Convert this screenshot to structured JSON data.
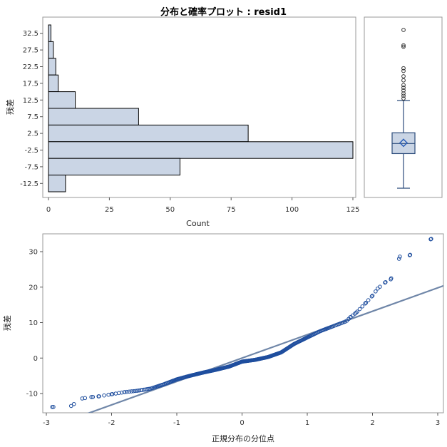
{
  "title": "分布と確率プロット : resid1",
  "colors": {
    "bar_fill": "#CAD5E5",
    "bar_stroke": "#000000",
    "box_stroke": "#2A4A7A",
    "marker": "#1F4E9E",
    "ref_line": "#6F86A8",
    "frame": "#999999"
  },
  "chart_data": [
    {
      "type": "bar",
      "orientation": "horizontal",
      "title": "",
      "xlabel": "Count",
      "ylabel": "残差",
      "categories": [
        "32.5",
        "27.5",
        "22.5",
        "17.5",
        "12.5",
        "7.5",
        "2.5",
        "-2.5",
        "-7.5",
        "-12.5"
      ],
      "bin_centers": [
        32.5,
        27.5,
        22.5,
        17.5,
        12.5,
        7.5,
        2.5,
        -2.5,
        -7.5,
        -12.5
      ],
      "values": [
        1,
        2,
        3,
        4,
        11,
        37,
        82,
        125,
        54,
        7
      ],
      "xlim": [
        0,
        125
      ],
      "xticks": [
        0,
        25,
        50,
        75,
        100,
        125
      ],
      "yticks": [
        "32.5",
        "27.5",
        "22.5",
        "17.5",
        "12.5",
        "7.5",
        "2.5",
        "-2.5",
        "-7.5",
        "-12.5"
      ]
    },
    {
      "type": "box",
      "ylim": [
        -15,
        35
      ],
      "whisker_low": -13.5,
      "q1": -3.2,
      "median": -0.2,
      "mean": 0.0,
      "q3": 3.0,
      "whisker_high": 12.6,
      "outliers": [
        13.2,
        14.0,
        14.7,
        15.6,
        16.4,
        17.2,
        18.6,
        19.8,
        21.4,
        22.2,
        28.6,
        29.0,
        33.6
      ]
    },
    {
      "type": "scatter",
      "title": "",
      "xlabel": "正規分布の分位点",
      "ylabel": "残差",
      "xlim": [
        -3.1,
        3.1
      ],
      "ylim": [
        -15.5,
        35
      ],
      "xticks": [
        -3,
        -2,
        -1,
        0,
        1,
        2,
        3
      ],
      "yticks": [
        -10,
        0,
        10,
        20,
        30
      ],
      "n": 326,
      "reference_line": {
        "intercept": 0.0,
        "slope": 6.6
      },
      "points_sample": [
        [
          -2.91,
          -13.8
        ],
        [
          -2.62,
          -13.5
        ],
        [
          -2.45,
          -11.4
        ],
        [
          -2.31,
          -11.0
        ],
        [
          -2.2,
          -10.8
        ],
        [
          -2.0,
          -10.2
        ],
        [
          -1.8,
          -9.6
        ],
        [
          -1.6,
          -9.2
        ],
        [
          -1.4,
          -8.6
        ],
        [
          -1.2,
          -7.4
        ],
        [
          -1.0,
          -6.0
        ],
        [
          -0.8,
          -5.0
        ],
        [
          -0.6,
          -4.1
        ],
        [
          -0.4,
          -3.3
        ],
        [
          -0.2,
          -2.4
        ],
        [
          0.0,
          -1.0
        ],
        [
          0.2,
          -0.5
        ],
        [
          0.4,
          0.3
        ],
        [
          0.6,
          1.6
        ],
        [
          0.8,
          4.0
        ],
        [
          1.0,
          5.8
        ],
        [
          1.2,
          7.6
        ],
        [
          1.4,
          9.0
        ],
        [
          1.6,
          10.4
        ],
        [
          1.66,
          11.5
        ],
        [
          1.75,
          12.8
        ],
        [
          1.9,
          15.6
        ],
        [
          2.0,
          17.6
        ],
        [
          2.08,
          19.6
        ],
        [
          2.2,
          21.4
        ],
        [
          2.28,
          22.2
        ],
        [
          2.42,
          28.6
        ],
        [
          2.57,
          29.0
        ],
        [
          2.9,
          33.6
        ]
      ]
    }
  ]
}
